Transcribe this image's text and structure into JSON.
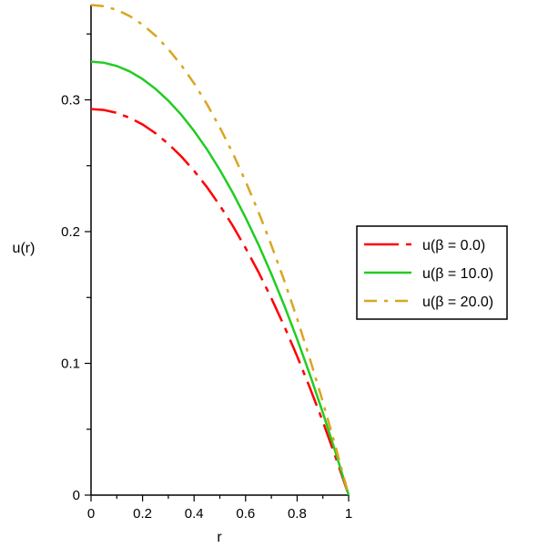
{
  "chart_data": {
    "type": "line",
    "title": "",
    "xlabel": "r",
    "ylabel": "u(r)",
    "xlim": [
      0,
      1
    ],
    "ylim": [
      0,
      0.372
    ],
    "grid": false,
    "legend_position": "right",
    "x_ticks": [
      "0",
      "0.2",
      "0.4",
      "0.6",
      "0.8",
      "1"
    ],
    "x_tick_values": [
      0,
      0.2,
      0.4,
      0.6,
      0.8,
      1
    ],
    "y_ticks": [
      "0",
      "0.1",
      "0.2",
      "0.3"
    ],
    "y_tick_values": [
      0,
      0.1,
      0.2,
      0.3
    ],
    "x": [
      0,
      0.05,
      0.1,
      0.15,
      0.2,
      0.25,
      0.3,
      0.35,
      0.4,
      0.45,
      0.5,
      0.55,
      0.6,
      0.65,
      0.7,
      0.75,
      0.8,
      0.85,
      0.9,
      0.95,
      1
    ],
    "series": [
      {
        "name": "u(β = 0.0)",
        "color": "#ff0000",
        "dash": "dash",
        "values": [
          0.293,
          0.2923,
          0.2901,
          0.2864,
          0.2813,
          0.2747,
          0.2666,
          0.2571,
          0.2461,
          0.2337,
          0.2198,
          0.2044,
          0.1875,
          0.1692,
          0.1494,
          0.1282,
          0.1055,
          0.0813,
          0.0557,
          0.0286,
          0
        ]
      },
      {
        "name": "u(β = 10.0)",
        "color": "#22cc22",
        "dash": "solid",
        "values": [
          0.329,
          0.3282,
          0.3257,
          0.3216,
          0.3158,
          0.3084,
          0.2994,
          0.2887,
          0.2764,
          0.2624,
          0.2468,
          0.2295,
          0.2106,
          0.19,
          0.1678,
          0.1439,
          0.1184,
          0.0913,
          0.0625,
          0.0321,
          0
        ]
      },
      {
        "name": "u(β = 20.0)",
        "color": "#daa520",
        "dash": "dashdot",
        "values": [
          0.372,
          0.3711,
          0.3683,
          0.3636,
          0.3571,
          0.3488,
          0.3385,
          0.3264,
          0.3125,
          0.2967,
          0.279,
          0.2595,
          0.2381,
          0.2148,
          0.1897,
          0.1628,
          0.1339,
          0.1032,
          0.0707,
          0.0363,
          0
        ]
      }
    ]
  }
}
